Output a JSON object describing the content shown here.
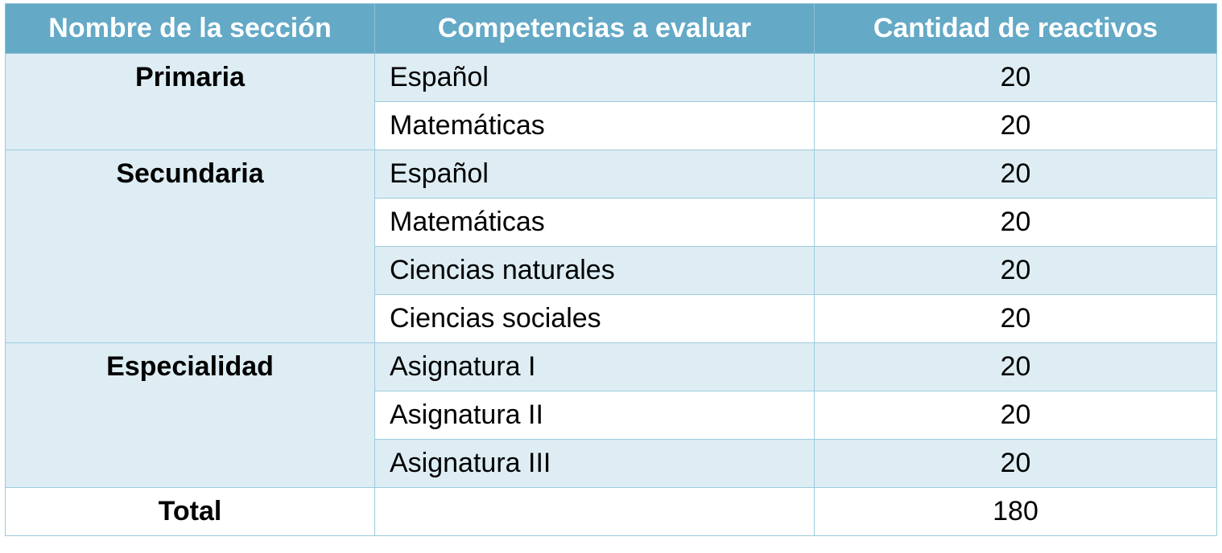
{
  "table": {
    "headers": [
      "Nombre de la sección",
      "Competencias a evaluar",
      "Cantidad de reactivos"
    ],
    "groups": [
      {
        "section": "Primaria",
        "rows": [
          {
            "competency": "Español",
            "count": "20"
          },
          {
            "competency": "Matemáticas",
            "count": "20"
          }
        ]
      },
      {
        "section": "Secundaria",
        "rows": [
          {
            "competency": "Español",
            "count": "20"
          },
          {
            "competency": "Matemáticas",
            "count": "20"
          },
          {
            "competency": "Ciencias naturales",
            "count": "20"
          },
          {
            "competency": "Ciencias sociales",
            "count": "20"
          }
        ]
      },
      {
        "section": "Especialidad",
        "rows": [
          {
            "competency": "Asignatura I",
            "count": "20"
          },
          {
            "competency": "Asignatura II",
            "count": "20"
          },
          {
            "competency": "Asignatura III",
            "count": "20"
          }
        ]
      }
    ],
    "total": {
      "label": "Total",
      "competency": "",
      "count": "180"
    },
    "colors": {
      "header_bg": "#64a9c6",
      "band_bg": "#ddedf3",
      "border": "#9ccbdd"
    }
  }
}
